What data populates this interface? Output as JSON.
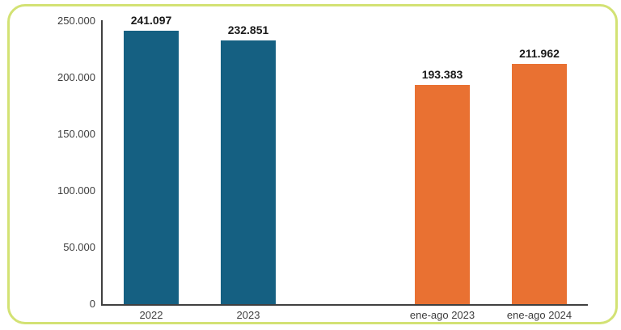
{
  "frame": {
    "border_color": "#D3E274",
    "background_color": "#FFFFFF"
  },
  "colors": {
    "series_annual": "#156082",
    "series_partial": "#E97132",
    "axis": "#404040",
    "data_label": "#1A1A1A",
    "tick_label": "#3D3D3D"
  },
  "chart_data": {
    "type": "bar",
    "title": "",
    "xlabel": "",
    "ylabel": "",
    "ylim": [
      0,
      250000
    ],
    "grid": false,
    "legend": false,
    "categories": [
      "2022",
      "2023",
      "",
      "ene-ago 2023",
      "ene-ago 2024"
    ],
    "values": [
      241097,
      232851,
      null,
      193383,
      211962
    ],
    "data_labels": [
      "241.097",
      "232.851",
      null,
      "193.383",
      "211.962"
    ],
    "bar_colors": [
      "#156082",
      "#156082",
      null,
      "#E97132",
      "#E97132"
    ],
    "y_ticks": [
      {
        "value": 0,
        "label": "0"
      },
      {
        "value": 50000,
        "label": "50.000"
      },
      {
        "value": 100000,
        "label": "100.000"
      },
      {
        "value": 150000,
        "label": "150.000"
      },
      {
        "value": 200000,
        "label": "200.000"
      },
      {
        "value": 250000,
        "label": "250.000"
      }
    ]
  }
}
